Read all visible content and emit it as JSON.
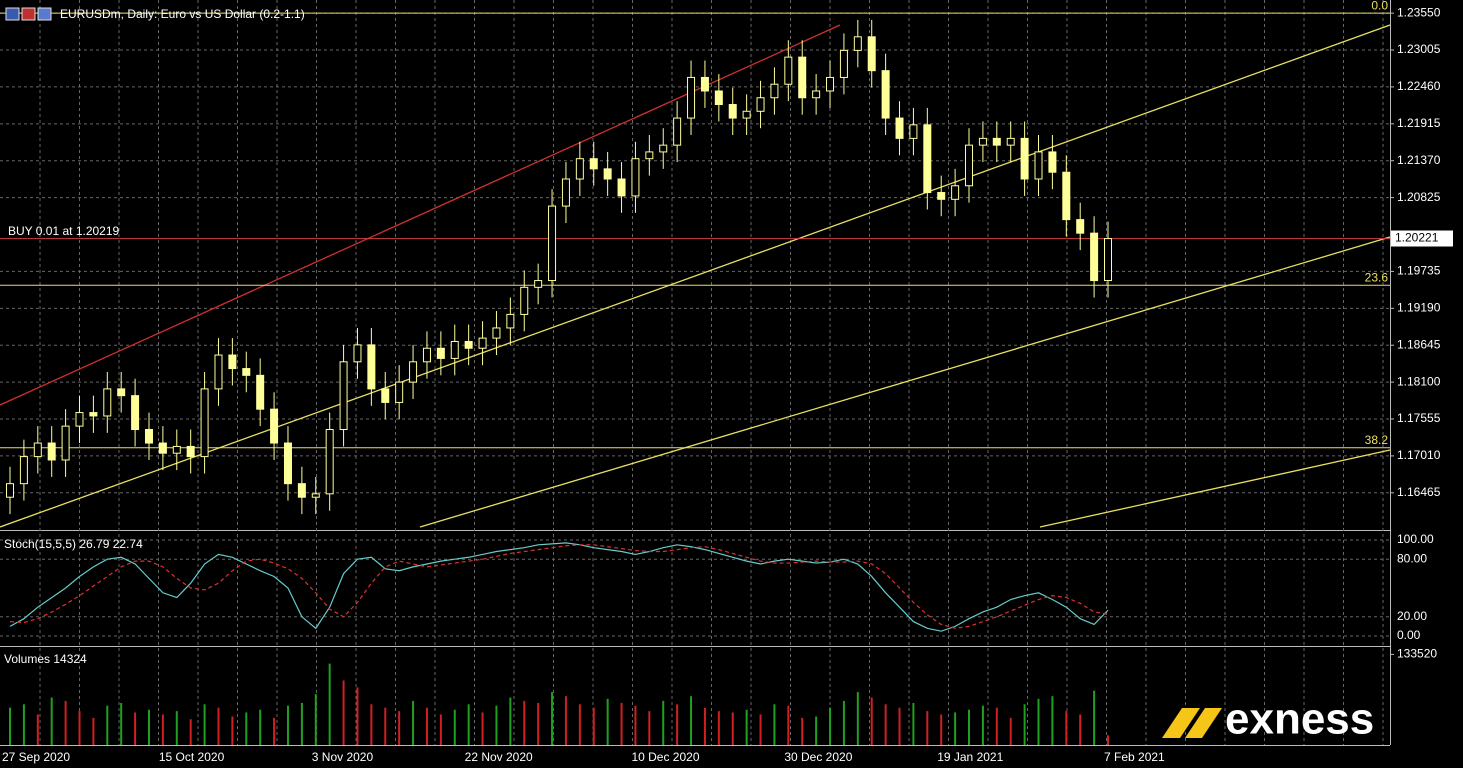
{
  "chart_data": {
    "type": "candlestick",
    "title": "EURUSDm, Daily:  Euro vs US Dollar (0.2-1.1)",
    "categories": [
      "27 Sep 2020",
      null,
      null,
      null,
      null,
      null,
      null,
      null,
      null,
      null,
      null,
      "15 Oct 2020",
      null,
      null,
      null,
      null,
      null,
      null,
      null,
      null,
      null,
      null,
      "3 Nov 2020",
      null,
      null,
      null,
      null,
      null,
      null,
      null,
      null,
      null,
      null,
      "22 Nov 2020",
      null,
      null,
      null,
      null,
      null,
      null,
      null,
      null,
      null,
      null,
      null,
      "10 Dec 2020",
      null,
      null,
      null,
      null,
      null,
      null,
      null,
      null,
      null,
      null,
      "30 Dec 2020",
      null,
      null,
      null,
      null,
      null,
      null,
      null,
      null,
      null,
      null,
      "19 Jan 2021",
      null,
      null,
      null,
      null,
      null,
      null,
      null,
      null,
      null,
      null,
      null,
      "7 Feb 2021"
    ],
    "open": [
      1.164,
      1.166,
      1.17,
      1.172,
      1.1695,
      1.1745,
      1.1765,
      1.176,
      1.18,
      1.179,
      1.174,
      1.172,
      1.1705,
      1.1715,
      1.17,
      1.18,
      1.185,
      1.183,
      1.182,
      1.177,
      1.172,
      1.166,
      1.164,
      1.1645,
      1.174,
      1.184,
      1.1865,
      1.18,
      1.178,
      1.181,
      1.184,
      1.186,
      1.1845,
      1.187,
      1.186,
      1.1875,
      1.189,
      1.191,
      1.195,
      1.196,
      1.207,
      1.211,
      1.214,
      1.2125,
      1.211,
      1.2085,
      1.214,
      1.215,
      1.216,
      1.22,
      1.226,
      1.224,
      1.222,
      1.22,
      1.221,
      1.223,
      1.225,
      1.229,
      1.223,
      1.224,
      1.226,
      1.23,
      1.232,
      1.227,
      1.22,
      1.217,
      1.219,
      1.209,
      1.208,
      1.21,
      1.216,
      1.217,
      1.216,
      1.217,
      1.211,
      1.215,
      1.212,
      1.205,
      1.203,
      1.196
    ],
    "high": [
      1.1685,
      1.1725,
      1.1745,
      1.1745,
      1.177,
      1.179,
      1.179,
      1.1825,
      1.1825,
      1.1815,
      1.1765,
      1.1745,
      1.174,
      1.174,
      1.1825,
      1.1875,
      1.1875,
      1.1855,
      1.1845,
      1.1795,
      1.1745,
      1.1685,
      1.167,
      1.1765,
      1.1865,
      1.189,
      1.189,
      1.1825,
      1.1835,
      1.1865,
      1.1885,
      1.1885,
      1.1895,
      1.1895,
      1.19,
      1.1915,
      1.1935,
      1.1975,
      1.1985,
      1.2095,
      1.2135,
      1.2165,
      1.2165,
      1.215,
      1.2135,
      1.2165,
      1.2175,
      1.2185,
      1.2225,
      1.2285,
      1.2285,
      1.2265,
      1.2245,
      1.2235,
      1.2255,
      1.2275,
      1.2315,
      1.2315,
      1.2265,
      1.2285,
      1.2325,
      1.2345,
      1.2345,
      1.2295,
      1.2225,
      1.2215,
      1.2215,
      1.2115,
      1.2125,
      1.2185,
      1.2195,
      1.2195,
      1.2195,
      1.2195,
      1.2175,
      1.2175,
      1.2145,
      1.2075,
      1.2055,
      1.2047
    ],
    "low": [
      1.1615,
      1.1635,
      1.1675,
      1.167,
      1.167,
      1.172,
      1.1735,
      1.1735,
      1.1765,
      1.1715,
      1.1695,
      1.168,
      1.168,
      1.1675,
      1.1675,
      1.1775,
      1.1805,
      1.1795,
      1.1745,
      1.1695,
      1.1635,
      1.1615,
      1.1615,
      1.162,
      1.1715,
      1.1815,
      1.1775,
      1.1755,
      1.1755,
      1.1785,
      1.1815,
      1.182,
      1.182,
      1.1835,
      1.1835,
      1.185,
      1.1865,
      1.1885,
      1.1925,
      1.1935,
      1.2045,
      1.2085,
      1.21,
      1.2085,
      1.206,
      1.206,
      1.2115,
      1.2125,
      1.2135,
      1.2175,
      1.2215,
      1.2195,
      1.2175,
      1.2175,
      1.2185,
      1.2205,
      1.2225,
      1.2205,
      1.2205,
      1.2215,
      1.2235,
      1.2275,
      1.2245,
      1.2175,
      1.2145,
      1.2145,
      1.2065,
      1.2055,
      1.2055,
      1.2075,
      1.2135,
      1.2135,
      1.2135,
      1.2085,
      1.2085,
      1.2095,
      1.2025,
      1.2005,
      1.1935,
      1.1935
    ],
    "close": [
      1.166,
      1.17,
      1.172,
      1.1695,
      1.1745,
      1.1765,
      1.176,
      1.18,
      1.179,
      1.174,
      1.172,
      1.1705,
      1.1715,
      1.17,
      1.18,
      1.185,
      1.183,
      1.182,
      1.177,
      1.172,
      1.166,
      1.164,
      1.1645,
      1.174,
      1.184,
      1.1865,
      1.18,
      1.178,
      1.181,
      1.184,
      1.186,
      1.1845,
      1.187,
      1.186,
      1.1875,
      1.189,
      1.191,
      1.195,
      1.196,
      1.207,
      1.211,
      1.214,
      1.2125,
      1.211,
      1.2085,
      1.214,
      1.215,
      1.216,
      1.22,
      1.226,
      1.224,
      1.222,
      1.22,
      1.221,
      1.223,
      1.225,
      1.229,
      1.223,
      1.224,
      1.226,
      1.23,
      1.232,
      1.227,
      1.22,
      1.217,
      1.219,
      1.209,
      1.208,
      1.21,
      1.216,
      1.217,
      1.216,
      1.217,
      1.211,
      1.215,
      1.212,
      1.205,
      1.203,
      1.196,
      1.2022
    ],
    "candle_color": "#ffff99",
    "ylim": [
      1.1596,
      1.2367
    ],
    "yticks": [
      {
        "value": 1.2355,
        "label": "1.23550"
      },
      1.23005,
      {
        "value": 1.2246,
        "label": "1.22460"
      },
      1.21915,
      {
        "value": 1.2137,
        "label": "1.21370"
      },
      1.20825,
      1.19735,
      {
        "value": 1.1919,
        "label": "1.19190"
      },
      1.18645,
      {
        "value": 1.181,
        "label": "1.18100"
      },
      1.17555,
      {
        "value": 1.1701,
        "label": "1.17010"
      },
      1.16465
    ],
    "grid": true,
    "current_price": 1.20221,
    "buy_line": {
      "label": "BUY 0.01 at 1.20219",
      "value": 1.20219,
      "color": "#d04040"
    },
    "fib_levels": [
      {
        "label": "0.0",
        "value": 1.2355
      },
      {
        "label": "23.6",
        "value": 1.1953
      },
      {
        "label": "38.2",
        "value": 1.1713
      }
    ],
    "fib_color": "#e8e060",
    "stochastic": {
      "title": "Stoch(15,5,5) 26.79 22.74",
      "ylim": [
        -9.4,
        107.3
      ],
      "yticks": [
        {
          "value": 100,
          "label": "100.00"
        },
        {
          "value": 80,
          "label": "80.00"
        },
        {
          "value": 20,
          "label": "20.00"
        },
        {
          "value": 0,
          "label": "0.00"
        }
      ],
      "series": [
        {
          "color": "#66cccc",
          "values": [
            10,
            18,
            30,
            40,
            50,
            62,
            72,
            80,
            82,
            75,
            60,
            45,
            40,
            55,
            75,
            85,
            82,
            75,
            68,
            62,
            50,
            20,
            8,
            30,
            65,
            80,
            82,
            70,
            68,
            72,
            75,
            78,
            80,
            82,
            85,
            88,
            90,
            92,
            95,
            96,
            97,
            95,
            92,
            90,
            88,
            85,
            88,
            92,
            95,
            93,
            90,
            86,
            82,
            78,
            75,
            78,
            80,
            78,
            76,
            77,
            80,
            75,
            62,
            45,
            30,
            15,
            8,
            5,
            10,
            18,
            25,
            30,
            38,
            42,
            45,
            38,
            30,
            18,
            12,
            26.79
          ]
        },
        {
          "color": "#e03030",
          "values": [
            15,
            14,
            18,
            25,
            33,
            42,
            52,
            62,
            72,
            78,
            78,
            72,
            60,
            50,
            48,
            55,
            68,
            78,
            80,
            76,
            70,
            60,
            45,
            28,
            20,
            35,
            55,
            72,
            78,
            75,
            72,
            74,
            76,
            78,
            80,
            83,
            86,
            88,
            90,
            92,
            94,
            95,
            95,
            93,
            91,
            89,
            88,
            88,
            90,
            92,
            93,
            90,
            86,
            82,
            78,
            76,
            76,
            77,
            78,
            77,
            77,
            78,
            75,
            65,
            50,
            35,
            22,
            12,
            8,
            10,
            15,
            20,
            26,
            32,
            38,
            42,
            40,
            34,
            25,
            22.74
          ]
        }
      ]
    },
    "volumes": {
      "title": "Volumes 14324",
      "ylim": [
        0,
        143000
      ],
      "yticks": [
        133520
      ],
      "up_color": "#20a020",
      "down_color": "#d02020",
      "values": [
        55000,
        60000,
        45000,
        70000,
        65000,
        50000,
        40000,
        58000,
        62000,
        48000,
        52000,
        45000,
        50000,
        38000,
        60000,
        55000,
        42000,
        48000,
        52000,
        40000,
        58000,
        62000,
        75000,
        120000,
        95000,
        85000,
        60000,
        55000,
        50000,
        65000,
        55000,
        45000,
        52000,
        60000,
        48000,
        58000,
        70000,
        65000,
        62000,
        78000,
        72000,
        60000,
        55000,
        68000,
        62000,
        58000,
        50000,
        65000,
        60000,
        72000,
        55000,
        50000,
        48000,
        52000,
        45000,
        60000,
        58000,
        40000,
        42000,
        55000,
        65000,
        78000,
        70000,
        60000,
        55000,
        62000,
        50000,
        45000,
        48000,
        52000,
        58000,
        55000,
        40000,
        60000,
        68000,
        72000,
        50000,
        45000,
        80000,
        14324
      ]
    }
  },
  "brand": "exness"
}
